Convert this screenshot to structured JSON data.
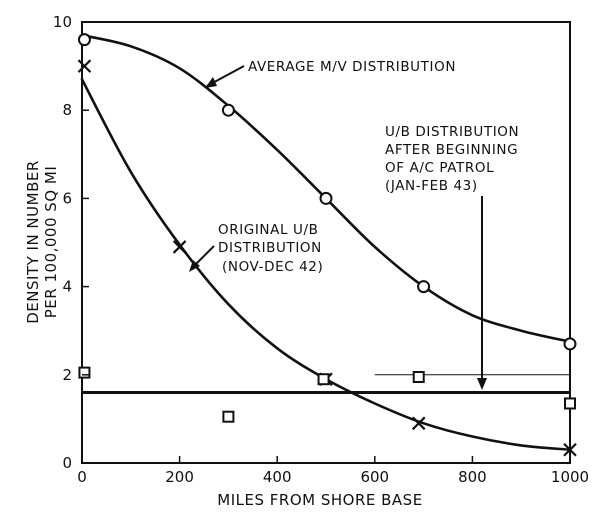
{
  "chart_data": {
    "type": "scatter",
    "xlabel": "MILES FROM SHORE BASE",
    "ylabel_lines": [
      "DENSITY IN NUMBER",
      "PER 100,000 SQ MI"
    ],
    "xlim": [
      0,
      1000
    ],
    "ylim": [
      0,
      10
    ],
    "x_ticks": [
      0,
      200,
      400,
      600,
      800,
      1000
    ],
    "y_ticks": [
      0,
      2,
      4,
      6,
      8,
      10
    ],
    "x_tick_labels": [
      "0",
      "200",
      "400",
      "600",
      "800",
      "1000"
    ],
    "y_tick_labels": [
      "0",
      "2",
      "4",
      "6",
      "8",
      "10"
    ],
    "grid": false,
    "series": [
      {
        "name": "AVERAGE M/V DISTRIBUTION",
        "marker": "circle",
        "x": [
          5,
          300,
          500,
          700,
          1000
        ],
        "y": [
          9.6,
          8.0,
          6.0,
          4.0,
          2.7
        ],
        "curve_x": [
          0,
          100,
          200,
          300,
          400,
          500,
          600,
          700,
          800,
          900,
          1000
        ],
        "curve_y": [
          9.7,
          9.45,
          8.95,
          8.1,
          7.1,
          6.0,
          4.9,
          4.0,
          3.35,
          3.0,
          2.75
        ]
      },
      {
        "name": "ORIGINAL U/B DISTRIBUTION (NOV-DEC 42)",
        "marker": "x",
        "x": [
          5,
          200,
          500,
          690,
          1000
        ],
        "y": [
          9.0,
          4.9,
          1.9,
          0.9,
          0.3
        ],
        "curve_x": [
          0,
          100,
          200,
          300,
          400,
          500,
          600,
          700,
          800,
          900,
          1000
        ],
        "curve_y": [
          8.7,
          6.6,
          4.95,
          3.6,
          2.6,
          1.9,
          1.35,
          0.9,
          0.6,
          0.4,
          0.3
        ]
      },
      {
        "name": "U/B DISTRIBUTION AFTER BEGINNING OF A/C PATROL (JAN-FEB 43)",
        "marker": "square",
        "x": [
          5,
          300,
          495,
          690,
          1000
        ],
        "y": [
          2.05,
          1.05,
          1.9,
          1.95,
          1.35
        ],
        "level": 1.6
      }
    ],
    "annotations": {
      "mv": "AVERAGE M/V DISTRIBUTION",
      "orig": [
        "ORIGINAL U/B",
        "DISTRIBUTION",
        "(NOV-DEC 42)"
      ],
      "after": [
        "U/B DISTRIBUTION",
        "AFTER BEGINNING",
        "OF A/C PATROL",
        "(JAN-FEB 43)"
      ]
    }
  }
}
